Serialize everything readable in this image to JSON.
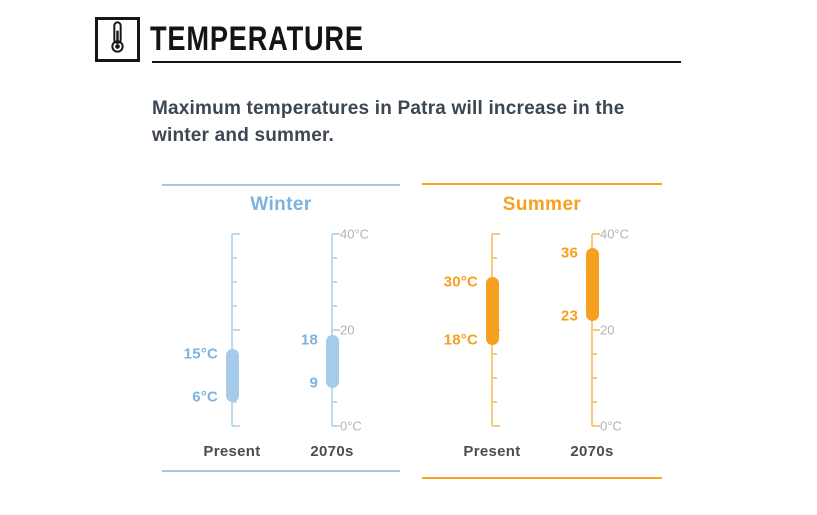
{
  "header": {
    "title": "TEMPERATURE"
  },
  "subtitle": "Maximum temperatures in Patra will increase in the winter and summer.",
  "chart_data": {
    "type": "range-thermometer",
    "title": "Temperature",
    "axis": {
      "min": 0,
      "max": 40,
      "tick_step": 5,
      "labels": [
        {
          "value": 40,
          "text": "40°C"
        },
        {
          "value": 20,
          "text": "20"
        },
        {
          "value": 0,
          "text": "0°C"
        }
      ],
      "label_color": "#b3b3b3"
    },
    "panels": [
      {
        "title": "Winter",
        "color": "#7db3de",
        "capsule_color": "#a6cbe9",
        "line_color": "#bedaef",
        "rule_color": "#a3c9e8",
        "series": [
          {
            "label": "Present",
            "low": 6,
            "high": 15,
            "low_text": "6°C",
            "high_text": "15°C",
            "show_axis_labels": false
          },
          {
            "label": "2070s",
            "low": 9,
            "high": 18,
            "low_text": "9",
            "high_text": "18",
            "show_axis_labels": true
          }
        ]
      },
      {
        "title": "Summer",
        "color": "#f6a01f",
        "capsule_color": "#f6a01f",
        "line_color": "#f8c97f",
        "rule_color": "#f6a41f",
        "series": [
          {
            "label": "Present",
            "low": 18,
            "high": 30,
            "low_text": "18°C",
            "high_text": "30°C",
            "show_axis_labels": false
          },
          {
            "label": "2070s",
            "low": 23,
            "high": 36,
            "low_text": "23",
            "high_text": "36",
            "show_axis_labels": true
          }
        ]
      }
    ]
  }
}
